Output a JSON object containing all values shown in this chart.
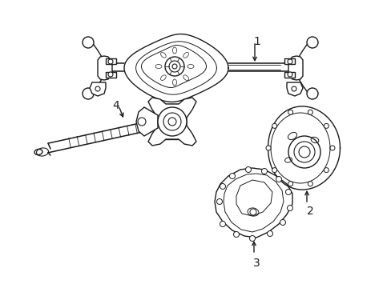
{
  "background_color": "#ffffff",
  "line_color": "#1a1a1a",
  "line_width": 1.0,
  "label_fontsize": 10,
  "figsize": [
    4.89,
    3.6
  ],
  "dpi": 100
}
